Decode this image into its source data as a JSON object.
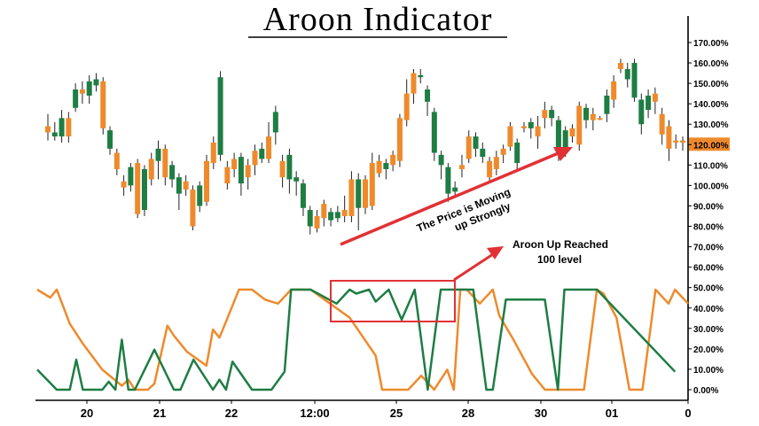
{
  "chart_data": {
    "type": "candlestick",
    "title": "Aroon Indicator",
    "y_axis": {
      "ticks": [
        "170.00%",
        "160.00%",
        "150.00%",
        "140.00%",
        "130.00%",
        "120.00%",
        "110.00%",
        "100.00%",
        "90.00%",
        "80.00%",
        "70.00%",
        "60.00%",
        "50.00%",
        "40.00%",
        "30.00%",
        "20.00%",
        "10.00%",
        "0.00%"
      ],
      "highlighted_value": "120.00%"
    },
    "x_axis": {
      "ticks": [
        "20",
        "21",
        "22",
        "12:00",
        "25",
        "28",
        "30",
        "01",
        "0"
      ]
    },
    "candles": [
      {
        "o": 126,
        "c": 129,
        "h": 135,
        "l": 122,
        "color": "orange"
      },
      {
        "o": 126,
        "c": 124,
        "h": 131,
        "l": 122,
        "color": "green"
      },
      {
        "o": 124,
        "c": 133,
        "h": 137,
        "l": 121,
        "color": "green"
      },
      {
        "o": 133,
        "c": 124,
        "h": 136,
        "l": 121,
        "color": "orange"
      },
      {
        "o": 138,
        "c": 147,
        "h": 150,
        "l": 136,
        "color": "green"
      },
      {
        "o": 147,
        "c": 145,
        "h": 151,
        "l": 140,
        "color": "orange"
      },
      {
        "o": 144,
        "c": 151,
        "h": 154,
        "l": 140,
        "color": "green"
      },
      {
        "o": 152,
        "c": 149,
        "h": 155,
        "l": 146,
        "color": "green"
      },
      {
        "o": 151,
        "c": 128,
        "h": 153,
        "l": 125,
        "color": "orange"
      },
      {
        "o": 127,
        "c": 118,
        "h": 129,
        "l": 115,
        "color": "green"
      },
      {
        "o": 116,
        "c": 108,
        "h": 118,
        "l": 105,
        "color": "orange"
      },
      {
        "o": 102,
        "c": 99,
        "h": 105,
        "l": 95,
        "color": "orange"
      },
      {
        "o": 100,
        "c": 109,
        "h": 111,
        "l": 97,
        "color": "green"
      },
      {
        "o": 111,
        "c": 86,
        "h": 113,
        "l": 84,
        "color": "orange"
      },
      {
        "o": 88,
        "c": 108,
        "h": 110,
        "l": 85,
        "color": "green"
      },
      {
        "o": 103,
        "c": 113,
        "h": 116,
        "l": 100,
        "color": "orange"
      },
      {
        "o": 112,
        "c": 118,
        "h": 122,
        "l": 103,
        "color": "green"
      },
      {
        "o": 118,
        "c": 104,
        "h": 120,
        "l": 100,
        "color": "orange"
      },
      {
        "o": 103,
        "c": 110,
        "h": 112,
        "l": 99,
        "color": "green"
      },
      {
        "o": 104,
        "c": 96,
        "h": 106,
        "l": 88,
        "color": "green"
      },
      {
        "o": 102,
        "c": 98,
        "h": 105,
        "l": 95,
        "color": "orange"
      },
      {
        "o": 98,
        "c": 80,
        "h": 100,
        "l": 78,
        "color": "orange"
      },
      {
        "o": 90,
        "c": 100,
        "h": 102,
        "l": 87,
        "color": "green"
      },
      {
        "o": 92,
        "c": 112,
        "h": 115,
        "l": 90,
        "color": "orange"
      },
      {
        "o": 111,
        "c": 121,
        "h": 124,
        "l": 108,
        "color": "orange"
      },
      {
        "o": 115,
        "c": 153,
        "h": 156,
        "l": 112,
        "color": "green"
      },
      {
        "o": 109,
        "c": 101,
        "h": 112,
        "l": 98,
        "color": "orange"
      },
      {
        "o": 108,
        "c": 113,
        "h": 116,
        "l": 104,
        "color": "orange"
      },
      {
        "o": 114,
        "c": 101,
        "h": 116,
        "l": 95,
        "color": "green"
      },
      {
        "o": 104,
        "c": 110,
        "h": 113,
        "l": 98,
        "color": "orange"
      },
      {
        "o": 110,
        "c": 117,
        "h": 120,
        "l": 105,
        "color": "orange"
      },
      {
        "o": 118,
        "c": 113,
        "h": 121,
        "l": 111,
        "color": "green"
      },
      {
        "o": 113,
        "c": 124,
        "h": 131,
        "l": 111,
        "color": "orange"
      },
      {
        "o": 136,
        "c": 126,
        "h": 139,
        "l": 120,
        "color": "green"
      },
      {
        "o": 104,
        "c": 112,
        "h": 115,
        "l": 99,
        "color": "orange"
      },
      {
        "o": 115,
        "c": 103,
        "h": 118,
        "l": 96,
        "color": "green"
      },
      {
        "o": 104,
        "c": 102,
        "h": 107,
        "l": 95,
        "color": "green"
      },
      {
        "o": 101,
        "c": 89,
        "h": 103,
        "l": 85,
        "color": "green"
      },
      {
        "o": 88,
        "c": 80,
        "h": 90,
        "l": 76,
        "color": "green"
      },
      {
        "o": 79,
        "c": 85,
        "h": 88,
        "l": 77,
        "color": "orange"
      },
      {
        "o": 84,
        "c": 91,
        "h": 93,
        "l": 80,
        "color": "orange"
      },
      {
        "o": 87,
        "c": 83,
        "h": 89,
        "l": 80,
        "color": "green"
      },
      {
        "o": 84,
        "c": 87,
        "h": 90,
        "l": 82,
        "color": "green"
      },
      {
        "o": 88,
        "c": 85,
        "h": 95,
        "l": 82,
        "color": "orange"
      },
      {
        "o": 85,
        "c": 103,
        "h": 107,
        "l": 82,
        "color": "orange"
      },
      {
        "o": 89,
        "c": 103,
        "h": 106,
        "l": 78,
        "color": "green"
      },
      {
        "o": 103,
        "c": 89,
        "h": 105,
        "l": 86,
        "color": "orange"
      },
      {
        "o": 90,
        "c": 111,
        "h": 116,
        "l": 88,
        "color": "orange"
      },
      {
        "o": 112,
        "c": 106,
        "h": 115,
        "l": 104,
        "color": "orange"
      },
      {
        "o": 108,
        "c": 111,
        "h": 113,
        "l": 103,
        "color": "green"
      },
      {
        "o": 110,
        "c": 115,
        "h": 117,
        "l": 107,
        "color": "orange"
      },
      {
        "o": 112,
        "c": 133,
        "h": 135,
        "l": 109,
        "color": "orange"
      },
      {
        "o": 132,
        "c": 145,
        "h": 152,
        "l": 129,
        "color": "orange"
      },
      {
        "o": 145,
        "c": 155,
        "h": 157,
        "l": 140,
        "color": "orange"
      },
      {
        "o": 153,
        "c": 154,
        "h": 157,
        "l": 150,
        "color": "green"
      },
      {
        "o": 147,
        "c": 141,
        "h": 149,
        "l": 134,
        "color": "green"
      },
      {
        "o": 136,
        "c": 116,
        "h": 138,
        "l": 112,
        "color": "green"
      },
      {
        "o": 115,
        "c": 110,
        "h": 117,
        "l": 103,
        "color": "green"
      },
      {
        "o": 109,
        "c": 96,
        "h": 111,
        "l": 92,
        "color": "green"
      },
      {
        "o": 99,
        "c": 97,
        "h": 102,
        "l": 95,
        "color": "green"
      },
      {
        "o": 108,
        "c": 110,
        "h": 115,
        "l": 104,
        "color": "orange"
      },
      {
        "o": 113,
        "c": 124,
        "h": 127,
        "l": 111,
        "color": "orange"
      },
      {
        "o": 124,
        "c": 118,
        "h": 126,
        "l": 114,
        "color": "green"
      },
      {
        "o": 118,
        "c": 114,
        "h": 121,
        "l": 111,
        "color": "green"
      },
      {
        "o": 112,
        "c": 104,
        "h": 114,
        "l": 102,
        "color": "orange"
      },
      {
        "o": 108,
        "c": 114,
        "h": 117,
        "l": 105,
        "color": "orange"
      },
      {
        "o": 115,
        "c": 118,
        "h": 120,
        "l": 111,
        "color": "orange"
      },
      {
        "o": 119,
        "c": 129,
        "h": 131,
        "l": 117,
        "color": "orange"
      },
      {
        "o": 121,
        "c": 111,
        "h": 123,
        "l": 107,
        "color": "green"
      },
      {
        "o": 129,
        "c": 128,
        "h": 131,
        "l": 126,
        "color": "orange"
      },
      {
        "o": 128,
        "c": 131,
        "h": 133,
        "l": 123,
        "color": "green"
      },
      {
        "o": 124,
        "c": 129,
        "h": 134,
        "l": 118,
        "color": "orange"
      },
      {
        "o": 133,
        "c": 137,
        "h": 141,
        "l": 128,
        "color": "orange"
      },
      {
        "o": 137,
        "c": 133,
        "h": 139,
        "l": 129,
        "color": "green"
      },
      {
        "o": 132,
        "c": 118,
        "h": 134,
        "l": 112,
        "color": "green"
      },
      {
        "o": 117,
        "c": 127,
        "h": 129,
        "l": 114,
        "color": "green"
      },
      {
        "o": 128,
        "c": 124,
        "h": 130,
        "l": 121,
        "color": "orange"
      },
      {
        "o": 120,
        "c": 139,
        "h": 141,
        "l": 117,
        "color": "orange"
      },
      {
        "o": 138,
        "c": 132,
        "h": 140,
        "l": 128,
        "color": "green"
      },
      {
        "o": 132,
        "c": 135,
        "h": 138,
        "l": 127,
        "color": "orange"
      },
      {
        "o": 133,
        "c": 133,
        "h": 134,
        "l": 132,
        "color": "orange"
      },
      {
        "o": 135,
        "c": 144,
        "h": 147,
        "l": 131,
        "color": "green"
      },
      {
        "o": 142,
        "c": 151,
        "h": 154,
        "l": 138,
        "color": "orange"
      },
      {
        "o": 157,
        "c": 160,
        "h": 162,
        "l": 155,
        "color": "orange"
      },
      {
        "o": 157,
        "c": 152,
        "h": 160,
        "l": 148,
        "color": "green"
      },
      {
        "o": 160,
        "c": 143,
        "h": 162,
        "l": 141,
        "color": "green"
      },
      {
        "o": 142,
        "c": 130,
        "h": 145,
        "l": 125,
        "color": "green"
      },
      {
        "o": 144,
        "c": 137,
        "h": 147,
        "l": 133,
        "color": "green"
      },
      {
        "o": 145,
        "c": 141,
        "h": 148,
        "l": 135,
        "color": "orange"
      },
      {
        "o": 135,
        "c": 125,
        "h": 138,
        "l": 120,
        "color": "orange"
      },
      {
        "o": 129,
        "c": 118,
        "h": 132,
        "l": 112,
        "color": "orange"
      },
      {
        "o": 121,
        "c": 122,
        "h": 125,
        "l": 118,
        "color": "orange"
      },
      {
        "o": 121,
        "c": 122,
        "h": 124,
        "l": 117,
        "color": "orange"
      }
    ],
    "aroon_up": {
      "color": "green",
      "x": [
        0,
        3,
        5,
        6,
        7,
        10,
        11,
        12,
        13,
        14,
        15,
        18,
        21,
        22,
        24,
        27,
        28,
        29,
        30,
        33,
        36,
        38,
        39,
        40,
        42,
        46,
        48,
        49,
        51,
        52,
        54,
        56,
        58,
        60,
        62,
        63,
        67,
        69,
        70,
        72,
        75,
        78,
        80,
        81,
        82
      ],
      "y": [
        10,
        0,
        0,
        15,
        0,
        0,
        4,
        0,
        25,
        0,
        0,
        20,
        0,
        0,
        15,
        0,
        5,
        0,
        14,
        0,
        0,
        9,
        50,
        50,
        50,
        43,
        50,
        48,
        50,
        44,
        50,
        35,
        50,
        0,
        50,
        50,
        50,
        0,
        0,
        45,
        45,
        45,
        0,
        50,
        50
      ],
      "extra": [
        [
          86,
          50
        ],
        [
          98,
          9
        ]
      ]
    },
    "aroon_down": {
      "color": "orange",
      "x": [
        0,
        2,
        3,
        5,
        7,
        10,
        13,
        14,
        15,
        17,
        18,
        20,
        21,
        23,
        26,
        27,
        28,
        29,
        31,
        33,
        35,
        37,
        39,
        42,
        45,
        48,
        52,
        53,
        55,
        57,
        59,
        61,
        63,
        64,
        65,
        66,
        68,
        70,
        71,
        73,
        76,
        78,
        82,
        84,
        86,
        87,
        89,
        91,
        92,
        93,
        95,
        97,
        98
      ],
      "y": [
        50,
        46,
        50,
        33,
        23,
        10,
        2,
        5,
        0,
        0,
        3,
        32,
        27,
        19,
        12,
        30,
        26,
        34,
        50,
        50,
        45,
        43,
        50,
        50,
        43,
        36,
        17,
        0,
        0,
        0,
        7,
        0,
        10,
        0,
        50,
        50,
        43,
        50,
        37,
        26,
        8,
        0,
        0,
        0,
        50,
        48,
        36,
        0,
        0,
        0,
        50,
        43,
        50
      ],
      "tail": [
        [
          100,
          43
        ]
      ]
    },
    "annotations": [
      {
        "text_line1": "The Price is Moving",
        "text_line2": "up Strongly"
      },
      {
        "text_line1": "Aroon Up Reached",
        "text_line2": "100 level"
      }
    ],
    "colors": {
      "green": "#1e7d43",
      "orange": "#ee8a2c",
      "arrow": "#e23135",
      "highlight_box": "#e23135"
    },
    "grid": false
  }
}
